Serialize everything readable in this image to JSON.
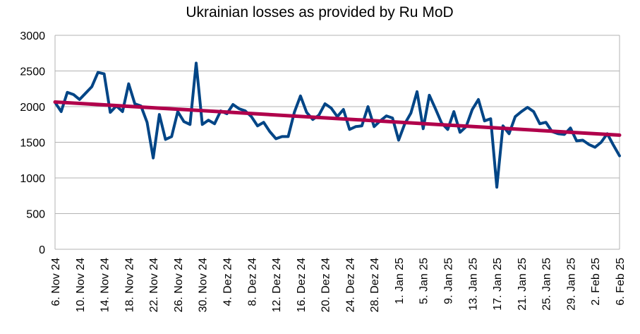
{
  "chart_data": {
    "type": "line",
    "title": "Ukrainian losses as provided by Ru MoD",
    "xlabel": "",
    "ylabel": "",
    "ylim": [
      0,
      3000
    ],
    "yticks": [
      0,
      500,
      1000,
      1500,
      2000,
      2500,
      3000
    ],
    "grid": true,
    "legend": "none",
    "x_tick_labels": [
      "6. Nov 24",
      "10. Nov 24",
      "14. Nov 24",
      "18. Nov 24",
      "22. Nov 24",
      "26. Nov 24",
      "30. Nov 24",
      "4. Dez 24",
      "8. Dez 24",
      "12. Dez 24",
      "16. Dez 24",
      "20. Dez 24",
      "24. Dez 24",
      "28. Dez 24",
      "1. Jan 25",
      "5. Jan 25",
      "9. Jan 25",
      "13. Jan 25",
      "17. Jan 25",
      "21. Jan 25",
      "25. Jan 25",
      "29. Jan 25",
      "2. Feb 25",
      "6. Feb 25"
    ],
    "x_start": "2024-11-06",
    "x_end": "2025-02-06",
    "series": [
      {
        "color": "#004586",
        "values": [
          2060,
          1930,
          2200,
          2170,
          2100,
          2190,
          2280,
          2480,
          2460,
          1920,
          2010,
          1930,
          2320,
          2040,
          2010,
          1780,
          1280,
          1890,
          1540,
          1580,
          1930,
          1790,
          1750,
          2610,
          1750,
          1810,
          1760,
          1940,
          1900,
          2030,
          1970,
          1940,
          1860,
          1730,
          1780,
          1650,
          1550,
          1580,
          1580,
          1920,
          2150,
          1920,
          1820,
          1880,
          2040,
          1980,
          1860,
          1960,
          1680,
          1720,
          1730,
          2000,
          1720,
          1800,
          1870,
          1840,
          1530,
          1760,
          1910,
          2210,
          1690,
          2160,
          1970,
          1770,
          1680,
          1930,
          1640,
          1720,
          1960,
          2100,
          1800,
          1830,
          870,
          1730,
          1620,
          1860,
          1930,
          1990,
          1930,
          1760,
          1780,
          1650,
          1620,
          1610,
          1700,
          1520,
          1530,
          1470,
          1430,
          1500,
          1620,
          1460,
          1310
        ]
      },
      {
        "color": "#b0004b",
        "type": "trendline",
        "start": 2065,
        "end": 1600
      }
    ]
  }
}
